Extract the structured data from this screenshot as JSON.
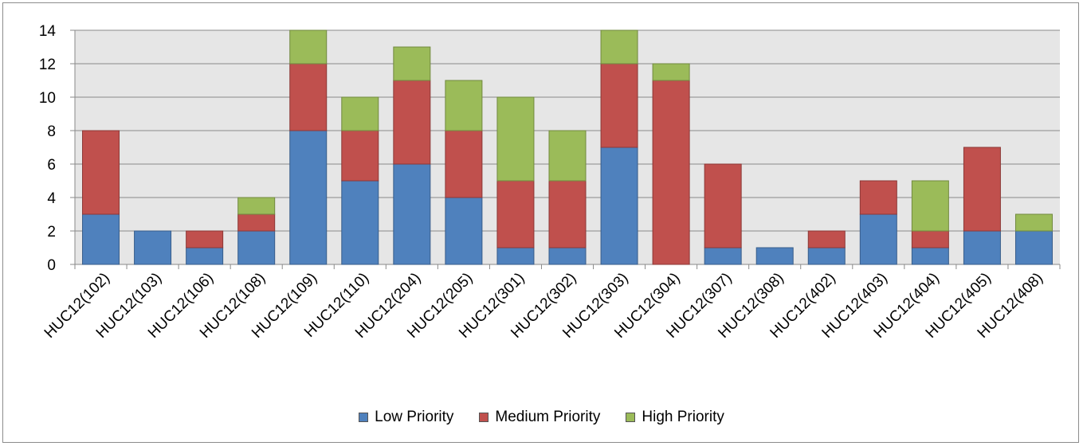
{
  "chart_data": {
    "type": "bar",
    "stacked": true,
    "categories": [
      "HUC12(102)",
      "HUC12(103)",
      "HUC12(106)",
      "HUC12(108)",
      "HUC12(109)",
      "HUC12(110)",
      "HUC12(204)",
      "HUC12(205)",
      "HUC12(301)",
      "HUC12(302)",
      "HUC12(303)",
      "HUC12(304)",
      "HUC12(307)",
      "HUC12(308)",
      "HUC12(402)",
      "HUC12(403)",
      "HUC12(404)",
      "HUC12(405)",
      "HUC12(408)"
    ],
    "series": [
      {
        "name": "Low Priority",
        "color": "#4f81bd",
        "values": [
          3,
          2,
          1,
          2,
          8,
          5,
          6,
          4,
          1,
          1,
          7,
          0,
          1,
          1,
          1,
          3,
          1,
          2,
          2
        ]
      },
      {
        "name": "Medium Priority",
        "color": "#c0504d",
        "values": [
          5,
          0,
          1,
          1,
          4,
          3,
          5,
          4,
          4,
          4,
          5,
          11,
          5,
          0,
          1,
          2,
          1,
          5,
          0
        ]
      },
      {
        "name": "High Priority",
        "color": "#9bbb59",
        "values": [
          0,
          0,
          0,
          1,
          2,
          2,
          2,
          3,
          5,
          3,
          2,
          1,
          0,
          0,
          0,
          0,
          3,
          0,
          1
        ]
      }
    ],
    "title": "",
    "xlabel": "",
    "ylabel": "",
    "ylim": [
      0,
      14
    ],
    "yticks": [
      0,
      2,
      4,
      6,
      8,
      10,
      12,
      14
    ],
    "grid": true,
    "legend": "bottom"
  }
}
